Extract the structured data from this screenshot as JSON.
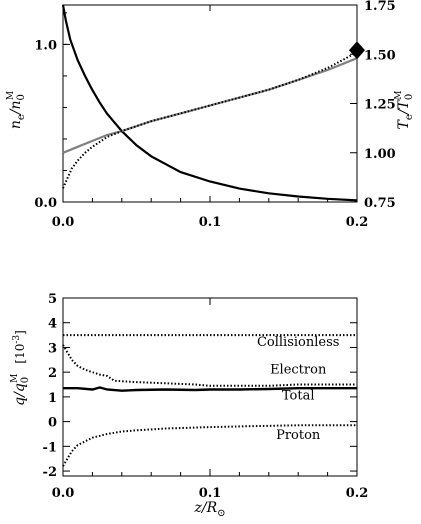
{
  "chart_data": [
    {
      "type": "line",
      "title": "",
      "xlabel": "",
      "xlim": [
        0,
        0.2
      ],
      "x_ticks": [
        "0.0",
        "0.1",
        "0.2"
      ],
      "ylabel_left": {
        "main": "n",
        "sub": "e",
        "den_main": "n",
        "den_sub": "0",
        "den_sup": "M"
      },
      "ylim_left": [
        0,
        1.25
      ],
      "y_ticks_left": [
        "0.0",
        "1.0"
      ],
      "ylabel_right": {
        "main": "T",
        "sub": "e",
        "den_main": "T",
        "den_sub": "0",
        "den_sup": "M"
      },
      "ylim_right": [
        0.75,
        1.75
      ],
      "y_ticks_right": [
        "0.75",
        "1.00",
        "1.25",
        "1.50",
        "1.75"
      ],
      "series": [
        {
          "axis": "left",
          "color": "#000000",
          "style": "solid",
          "x": [
            0,
            0.002,
            0.005,
            0.01,
            0.015,
            0.02,
            0.025,
            0.03,
            0.04,
            0.05,
            0.06,
            0.08,
            0.1,
            0.12,
            0.14,
            0.16,
            0.18,
            0.2
          ],
          "y": [
            1.25,
            1.15,
            1.03,
            0.9,
            0.8,
            0.71,
            0.63,
            0.56,
            0.45,
            0.36,
            0.29,
            0.19,
            0.13,
            0.085,
            0.055,
            0.035,
            0.02,
            0.01
          ]
        },
        {
          "axis": "right",
          "color": "#808080",
          "style": "solid",
          "x": [
            0,
            0.01,
            0.02,
            0.03,
            0.04,
            0.06,
            0.08,
            0.1,
            0.12,
            0.14,
            0.16,
            0.18,
            0.2
          ],
          "y": [
            1.0,
            1.03,
            1.06,
            1.09,
            1.11,
            1.16,
            1.2,
            1.24,
            1.28,
            1.32,
            1.37,
            1.42,
            1.48
          ]
        },
        {
          "axis": "right",
          "color": "#000000",
          "style": "dotted",
          "x": [
            0,
            0.003,
            0.006,
            0.01,
            0.015,
            0.02,
            0.03,
            0.04,
            0.06,
            0.08,
            0.1,
            0.12,
            0.14,
            0.16,
            0.18,
            0.19,
            0.2
          ],
          "y": [
            0.82,
            0.87,
            0.92,
            0.96,
            1.0,
            1.03,
            1.08,
            1.11,
            1.16,
            1.2,
            1.24,
            1.28,
            1.32,
            1.37,
            1.43,
            1.47,
            1.51
          ]
        }
      ],
      "marker": {
        "axis": "right",
        "shape": "diamond",
        "x": 0.2,
        "y": 1.52,
        "color": "#000000"
      }
    },
    {
      "type": "line",
      "title": "",
      "xlabel": {
        "main": "z/R",
        "sub": "⊙"
      },
      "xlim": [
        0,
        0.2
      ],
      "x_ticks": [
        "0.0",
        "0.1",
        "0.2"
      ],
      "ylabel": {
        "main": "q/q",
        "sub": "0",
        "sup": "M",
        "unit": "[10",
        "unit_sup": "-3",
        "unit_end": "]"
      },
      "ylim": [
        -2.2,
        5
      ],
      "y_ticks": [
        "-2",
        "-1",
        "0",
        "1",
        "2",
        "3",
        "4",
        "5"
      ],
      "series": [
        {
          "name": "Collisionless",
          "color": "#000000",
          "style": "dotted",
          "x": [
            0,
            0.2
          ],
          "y": [
            3.5,
            3.5
          ]
        },
        {
          "name": "Electron",
          "color": "#000000",
          "style": "dotted",
          "x": [
            0,
            0.003,
            0.006,
            0.01,
            0.015,
            0.02,
            0.025,
            0.03,
            0.035,
            0.05,
            0.07,
            0.09,
            0.1,
            0.12,
            0.14,
            0.16,
            0.18,
            0.2
          ],
          "y": [
            3.1,
            2.8,
            2.5,
            2.25,
            2.1,
            2.0,
            1.9,
            1.85,
            1.65,
            1.6,
            1.55,
            1.5,
            1.45,
            1.45,
            1.45,
            1.5,
            1.5,
            1.5
          ]
        },
        {
          "name": "Total",
          "color": "#000000",
          "style": "solid",
          "x": [
            0,
            0.01,
            0.02,
            0.025,
            0.03,
            0.04,
            0.05,
            0.07,
            0.09,
            0.1,
            0.12,
            0.14,
            0.16,
            0.18,
            0.2
          ],
          "y": [
            1.35,
            1.35,
            1.3,
            1.38,
            1.3,
            1.25,
            1.28,
            1.3,
            1.28,
            1.3,
            1.3,
            1.32,
            1.35,
            1.35,
            1.35
          ]
        },
        {
          "name": "Proton",
          "color": "#000000",
          "style": "dotted",
          "x": [
            0,
            0.003,
            0.006,
            0.01,
            0.015,
            0.02,
            0.03,
            0.04,
            0.05,
            0.07,
            0.1,
            0.13,
            0.16,
            0.2
          ],
          "y": [
            -1.8,
            -1.5,
            -1.2,
            -0.95,
            -0.8,
            -0.65,
            -0.5,
            -0.4,
            -0.35,
            -0.28,
            -0.22,
            -0.18,
            -0.15,
            -0.15
          ]
        }
      ],
      "annotations": [
        {
          "text": "Collisionless",
          "x": 0.16,
          "y": 3.05
        },
        {
          "text": "Electron",
          "x": 0.16,
          "y": 1.95
        },
        {
          "text": "Total",
          "x": 0.16,
          "y": 0.9
        },
        {
          "text": "Proton",
          "x": 0.16,
          "y": -0.7
        }
      ]
    }
  ]
}
